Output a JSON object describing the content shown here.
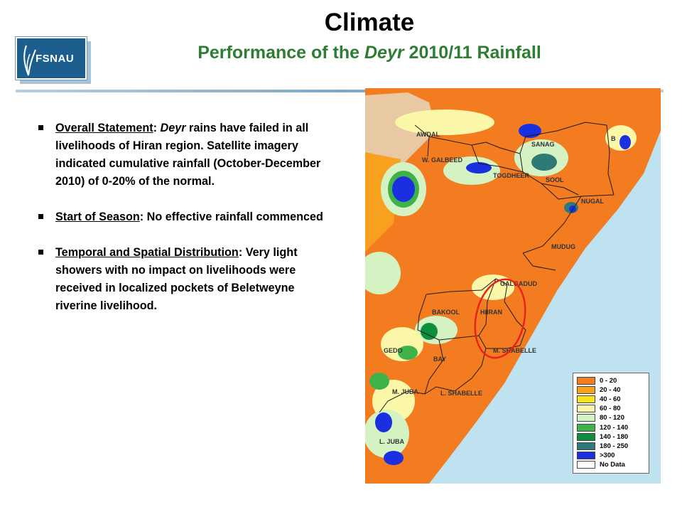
{
  "header": {
    "title": "Climate",
    "subtitle_pre": "Performance of the ",
    "subtitle_em": "Deyr",
    "subtitle_post": " 2010/11 Rainfall"
  },
  "logo": {
    "text": "FSNAU",
    "icon": "leaf-icon",
    "colors": {
      "front": "#1c5f8f",
      "back": "#a9c3d6"
    }
  },
  "bullets": [
    {
      "label": "Overall Statement",
      "text_parts": [
        {
          "t": ": ",
          "em": false
        },
        {
          "t": "Deyr",
          "em": true
        },
        {
          "t": " rains have failed in all livelihoods of Hiran region. Satellite imagery indicated cumulative rainfall (October-December 2010) of 0-20% of the normal.",
          "em": false
        }
      ]
    },
    {
      "label": "Start of Season",
      "text_parts": [
        {
          "t": ":  No effective rainfall commenced",
          "em": false
        }
      ]
    },
    {
      "label": "Temporal and Spatial Distribution",
      "text_parts": [
        {
          "t": ": Very light showers with no impact on livelihoods were received in localized pockets of Beletweyne riverine livelihood.",
          "em": false
        }
      ]
    }
  ],
  "map": {
    "regions": [
      "AWDAL",
      "W. GALBEED",
      "TOGDHEER",
      "SANAG",
      "SOOL",
      "B",
      "NUGAL",
      "MUDUG",
      "GALGADUD",
      "BAKOOL",
      "HIIRAN",
      "GEDO",
      "BAY",
      "M. SHABELLE",
      "M. JUBA",
      "L. SHABELLE",
      "L. JUBA"
    ],
    "highlight_region": "HIIRAN",
    "highlight_color": "#e8231f",
    "colors": {
      "sea": "#bfe2f0",
      "land_base": "#f47c20",
      "boundary": "#1a1a1a"
    }
  },
  "legend": {
    "items": [
      {
        "label": "0 - 20",
        "color": "#f47c20"
      },
      {
        "label": "20 - 40",
        "color": "#f8a11e"
      },
      {
        "label": "40 - 60",
        "color": "#f9e31c"
      },
      {
        "label": "60 - 80",
        "color": "#fbf7a8"
      },
      {
        "label": "80 - 120",
        "color": "#d4f2c2"
      },
      {
        "label": "120 - 140",
        "color": "#3fb34a"
      },
      {
        "label": "140 - 180",
        "color": "#0f8f3e"
      },
      {
        "label": "180 - 250",
        "color": "#2f7a76"
      },
      {
        "label": ">300",
        "color": "#1a2fe0"
      },
      {
        "label": "No Data",
        "color": "#ffffff"
      }
    ]
  }
}
